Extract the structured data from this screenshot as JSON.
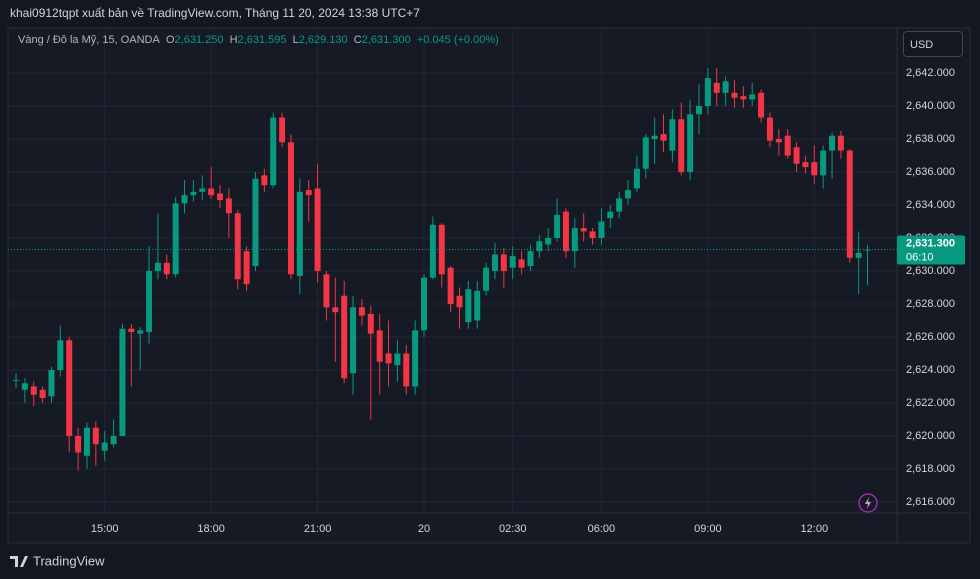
{
  "chart_data": {
    "type": "candlestick",
    "title": "khai0912tqpt xuất bản về TradingView.com, Tháng 11 20, 2024 13:38 UTC+7",
    "symbol": "Vàng / Đô la Mỹ, 15, OANDA",
    "ohlc_legend": [
      {
        "key": "O",
        "value": "2,631.250"
      },
      {
        "key": "H",
        "value": "2,631.595"
      },
      {
        "key": "L",
        "value": "2,629.130"
      },
      {
        "key": "C",
        "value": "2,631.300"
      }
    ],
    "change": "+0.045 (+0.00%)",
    "currency": "USD",
    "brand": "TradingView",
    "up_color": "#089981",
    "down_color": "#f23645",
    "categories": [
      null,
      null,
      null,
      null,
      null,
      null,
      null,
      null,
      null,
      null,
      "15:00",
      null,
      null,
      null,
      null,
      null,
      null,
      null,
      null,
      null,
      null,
      null,
      "18:00",
      null,
      null,
      null,
      null,
      null,
      null,
      null,
      null,
      null,
      null,
      null,
      "21:00",
      null,
      null,
      null,
      null,
      null,
      null,
      null,
      null,
      null,
      null,
      null,
      "20",
      null,
      null,
      null,
      null,
      null,
      null,
      null,
      null,
      null,
      "02:30",
      null,
      null,
      null,
      null,
      null,
      null,
      null,
      null,
      null,
      "06:00",
      null,
      null,
      null,
      null,
      null,
      null,
      null,
      null,
      null,
      null,
      null,
      "09:00",
      null,
      null,
      null,
      null,
      null,
      null,
      null,
      null,
      null,
      null,
      null,
      "12:00",
      null,
      null,
      null,
      null,
      null,
      null
    ],
    "open": [
      2623.4,
      2622.8,
      2623.0,
      2622.8,
      2622.4,
      2624.0,
      2625.8,
      2620.0,
      2618.8,
      2620.5,
      2619.1,
      2619.5,
      2620.0,
      2626.5,
      2626.2,
      2626.3,
      2630.0,
      2630.5,
      2629.8,
      2634.1,
      2634.6,
      2634.8,
      2635.0,
      2634.7,
      2634.4,
      2633.5,
      2631.2,
      2630.3,
      2635.8,
      2635.2,
      2639.3,
      2637.8,
      2629.7,
      2634.9,
      2635.0,
      2629.8,
      2627.8,
      2628.5,
      2623.8,
      2627.8,
      2627.4,
      2626.4,
      2625.0,
      2624.3,
      2625.0,
      2623.0,
      2626.4,
      2629.6,
      2632.8,
      2630.2,
      2628.5,
      2626.9,
      2627.0,
      2628.8,
      2630.0,
      2631.0,
      2630.2,
      2630.7,
      2630.3,
      2631.2,
      2631.6,
      2632.0,
      2633.6,
      2631.2,
      2632.6,
      2632.4,
      2632.0,
      2633.2,
      2633.6,
      2634.4,
      2635.0,
      2636.2,
      2638.0,
      2638.3,
      2637.3,
      2639.2,
      2636.0,
      2639.5,
      2640.0,
      2641.4,
      2640.8,
      2640.8,
      2640.6,
      2640.4,
      2640.8,
      2639.3,
      2638.0,
      2638.2,
      2637.5,
      2636.6,
      2636.6,
      2635.8,
      2637.3,
      2638.2,
      2637.3,
      2630.8,
      2631.25
    ],
    "high": [
      2623.8,
      2623.5,
      2623.3,
      2623.0,
      2624.2,
      2626.7,
      2626.0,
      2620.5,
      2620.8,
      2620.9,
      2620.3,
      2621.0,
      2626.8,
      2626.8,
      2626.6,
      2631.5,
      2633.5,
      2631.0,
      2634.5,
      2635.5,
      2635.5,
      2635.8,
      2636.3,
      2635.2,
      2635.0,
      2633.7,
      2631.5,
      2636.0,
      2636.2,
      2639.6,
      2639.6,
      2638.3,
      2635.6,
      2635.5,
      2636.5,
      2630.0,
      2629.6,
      2629.4,
      2628.5,
      2628.3,
      2627.9,
      2627.4,
      2627.0,
      2625.8,
      2625.5,
      2627.0,
      2629.8,
      2633.3,
      2632.9,
      2630.3,
      2629.0,
      2629.4,
      2629.4,
      2630.5,
      2631.7,
      2631.4,
      2631.5,
      2631.2,
      2631.6,
      2632.2,
      2632.6,
      2634.4,
      2633.8,
      2633.2,
      2633.5,
      2632.6,
      2633.8,
      2634.0,
      2634.8,
      2635.5,
      2637.0,
      2638.3,
      2639.3,
      2639.5,
      2639.8,
      2640.2,
      2640.4,
      2641.3,
      2642.3,
      2642.3,
      2641.8,
      2641.6,
      2641.2,
      2641.4,
      2641.0,
      2639.6,
      2638.6,
      2638.6,
      2637.8,
      2637.0,
      2637.6,
      2637.6,
      2638.4,
      2638.5,
      2637.4,
      2632.4,
      2631.595
    ],
    "low": [
      2622.9,
      2622.0,
      2621.8,
      2622.0,
      2622.0,
      2623.6,
      2619.0,
      2617.9,
      2618.0,
      2618.2,
      2618.5,
      2619.3,
      2620.0,
      2623.0,
      2624.0,
      2625.6,
      2629.5,
      2629.5,
      2629.6,
      2633.5,
      2634.2,
      2634.3,
      2634.4,
      2633.8,
      2632.0,
      2628.9,
      2628.8,
      2630.0,
      2634.8,
      2635.0,
      2637.5,
      2629.5,
      2628.6,
      2633.0,
      2629.3,
      2627.0,
      2624.5,
      2623.2,
      2622.5,
      2626.7,
      2621.0,
      2622.5,
      2623.0,
      2623.3,
      2622.5,
      2622.5,
      2626.0,
      2629.5,
      2629.0,
      2627.5,
      2626.5,
      2626.5,
      2626.5,
      2628.5,
      2629.5,
      2629.0,
      2629.5,
      2629.8,
      2630.0,
      2630.8,
      2631.2,
      2631.8,
      2630.8,
      2630.2,
      2631.8,
      2631.6,
      2631.6,
      2632.6,
      2633.2,
      2634.0,
      2634.8,
      2635.6,
      2636.5,
      2637.2,
      2636.6,
      2635.8,
      2635.5,
      2638.3,
      2639.5,
      2640.0,
      2640.0,
      2639.9,
      2639.9,
      2640.0,
      2639.0,
      2637.5,
      2637.0,
      2636.8,
      2636.0,
      2635.9,
      2635.3,
      2635.0,
      2635.6,
      2636.8,
      2630.5,
      2628.6,
      2629.13
    ],
    "close": [
      2623.4,
      2623.2,
      2622.5,
      2622.3,
      2624.0,
      2625.8,
      2620.0,
      2619.0,
      2620.5,
      2619.5,
      2619.6,
      2620.0,
      2626.5,
      2626.3,
      2626.4,
      2630.0,
      2630.5,
      2629.8,
      2634.1,
      2634.6,
      2634.8,
      2635.0,
      2634.6,
      2634.3,
      2633.5,
      2629.5,
      2629.2,
      2635.6,
      2635.2,
      2639.3,
      2637.8,
      2629.8,
      2634.8,
      2634.6,
      2630.0,
      2627.8,
      2627.5,
      2623.5,
      2627.8,
      2627.3,
      2626.2,
      2624.5,
      2624.4,
      2625.0,
      2623.0,
      2626.4,
      2629.6,
      2632.8,
      2629.8,
      2628.0,
      2627.8,
      2628.9,
      2628.8,
      2630.2,
      2631.0,
      2630.0,
      2630.9,
      2630.2,
      2631.2,
      2631.8,
      2632.0,
      2633.4,
      2631.2,
      2632.6,
      2632.4,
      2632.0,
      2633.0,
      2633.6,
      2634.4,
      2634.9,
      2636.2,
      2638.1,
      2638.2,
      2637.9,
      2639.2,
      2636.0,
      2639.5,
      2640.0,
      2641.7,
      2640.8,
      2641.5,
      2640.5,
      2640.4,
      2640.7,
      2639.3,
      2637.9,
      2637.8,
      2637.0,
      2636.5,
      2636.3,
      2635.8,
      2637.3,
      2638.2,
      2637.3,
      2630.8,
      2631.1,
      2631.3
    ],
    "ylim": [
      2615.33,
      2644.73
    ],
    "yticks": [
      {
        "value": 2616,
        "label": "2,616.000"
      },
      {
        "value": 2618,
        "label": "2,618.000"
      },
      {
        "value": 2620,
        "label": "2,620.000"
      },
      {
        "value": 2622,
        "label": "2,622.000"
      },
      {
        "value": 2624,
        "label": "2,624.000"
      },
      {
        "value": 2626,
        "label": "2,626.000"
      },
      {
        "value": 2628,
        "label": "2,628.000"
      },
      {
        "value": 2630,
        "label": "2,630.000"
      },
      {
        "value": 2632,
        "label": "2,632.000"
      },
      {
        "value": 2634,
        "label": "2,634.000"
      },
      {
        "value": 2636,
        "label": "2,636.000"
      },
      {
        "value": 2638,
        "label": "2,638.000"
      },
      {
        "value": 2640,
        "label": "2,640.000"
      },
      {
        "value": 2642,
        "label": "2,642.000"
      }
    ],
    "last_price": {
      "value": 2631.3,
      "label": "2,631.300"
    },
    "countdown": "06:10",
    "grid": true
  }
}
